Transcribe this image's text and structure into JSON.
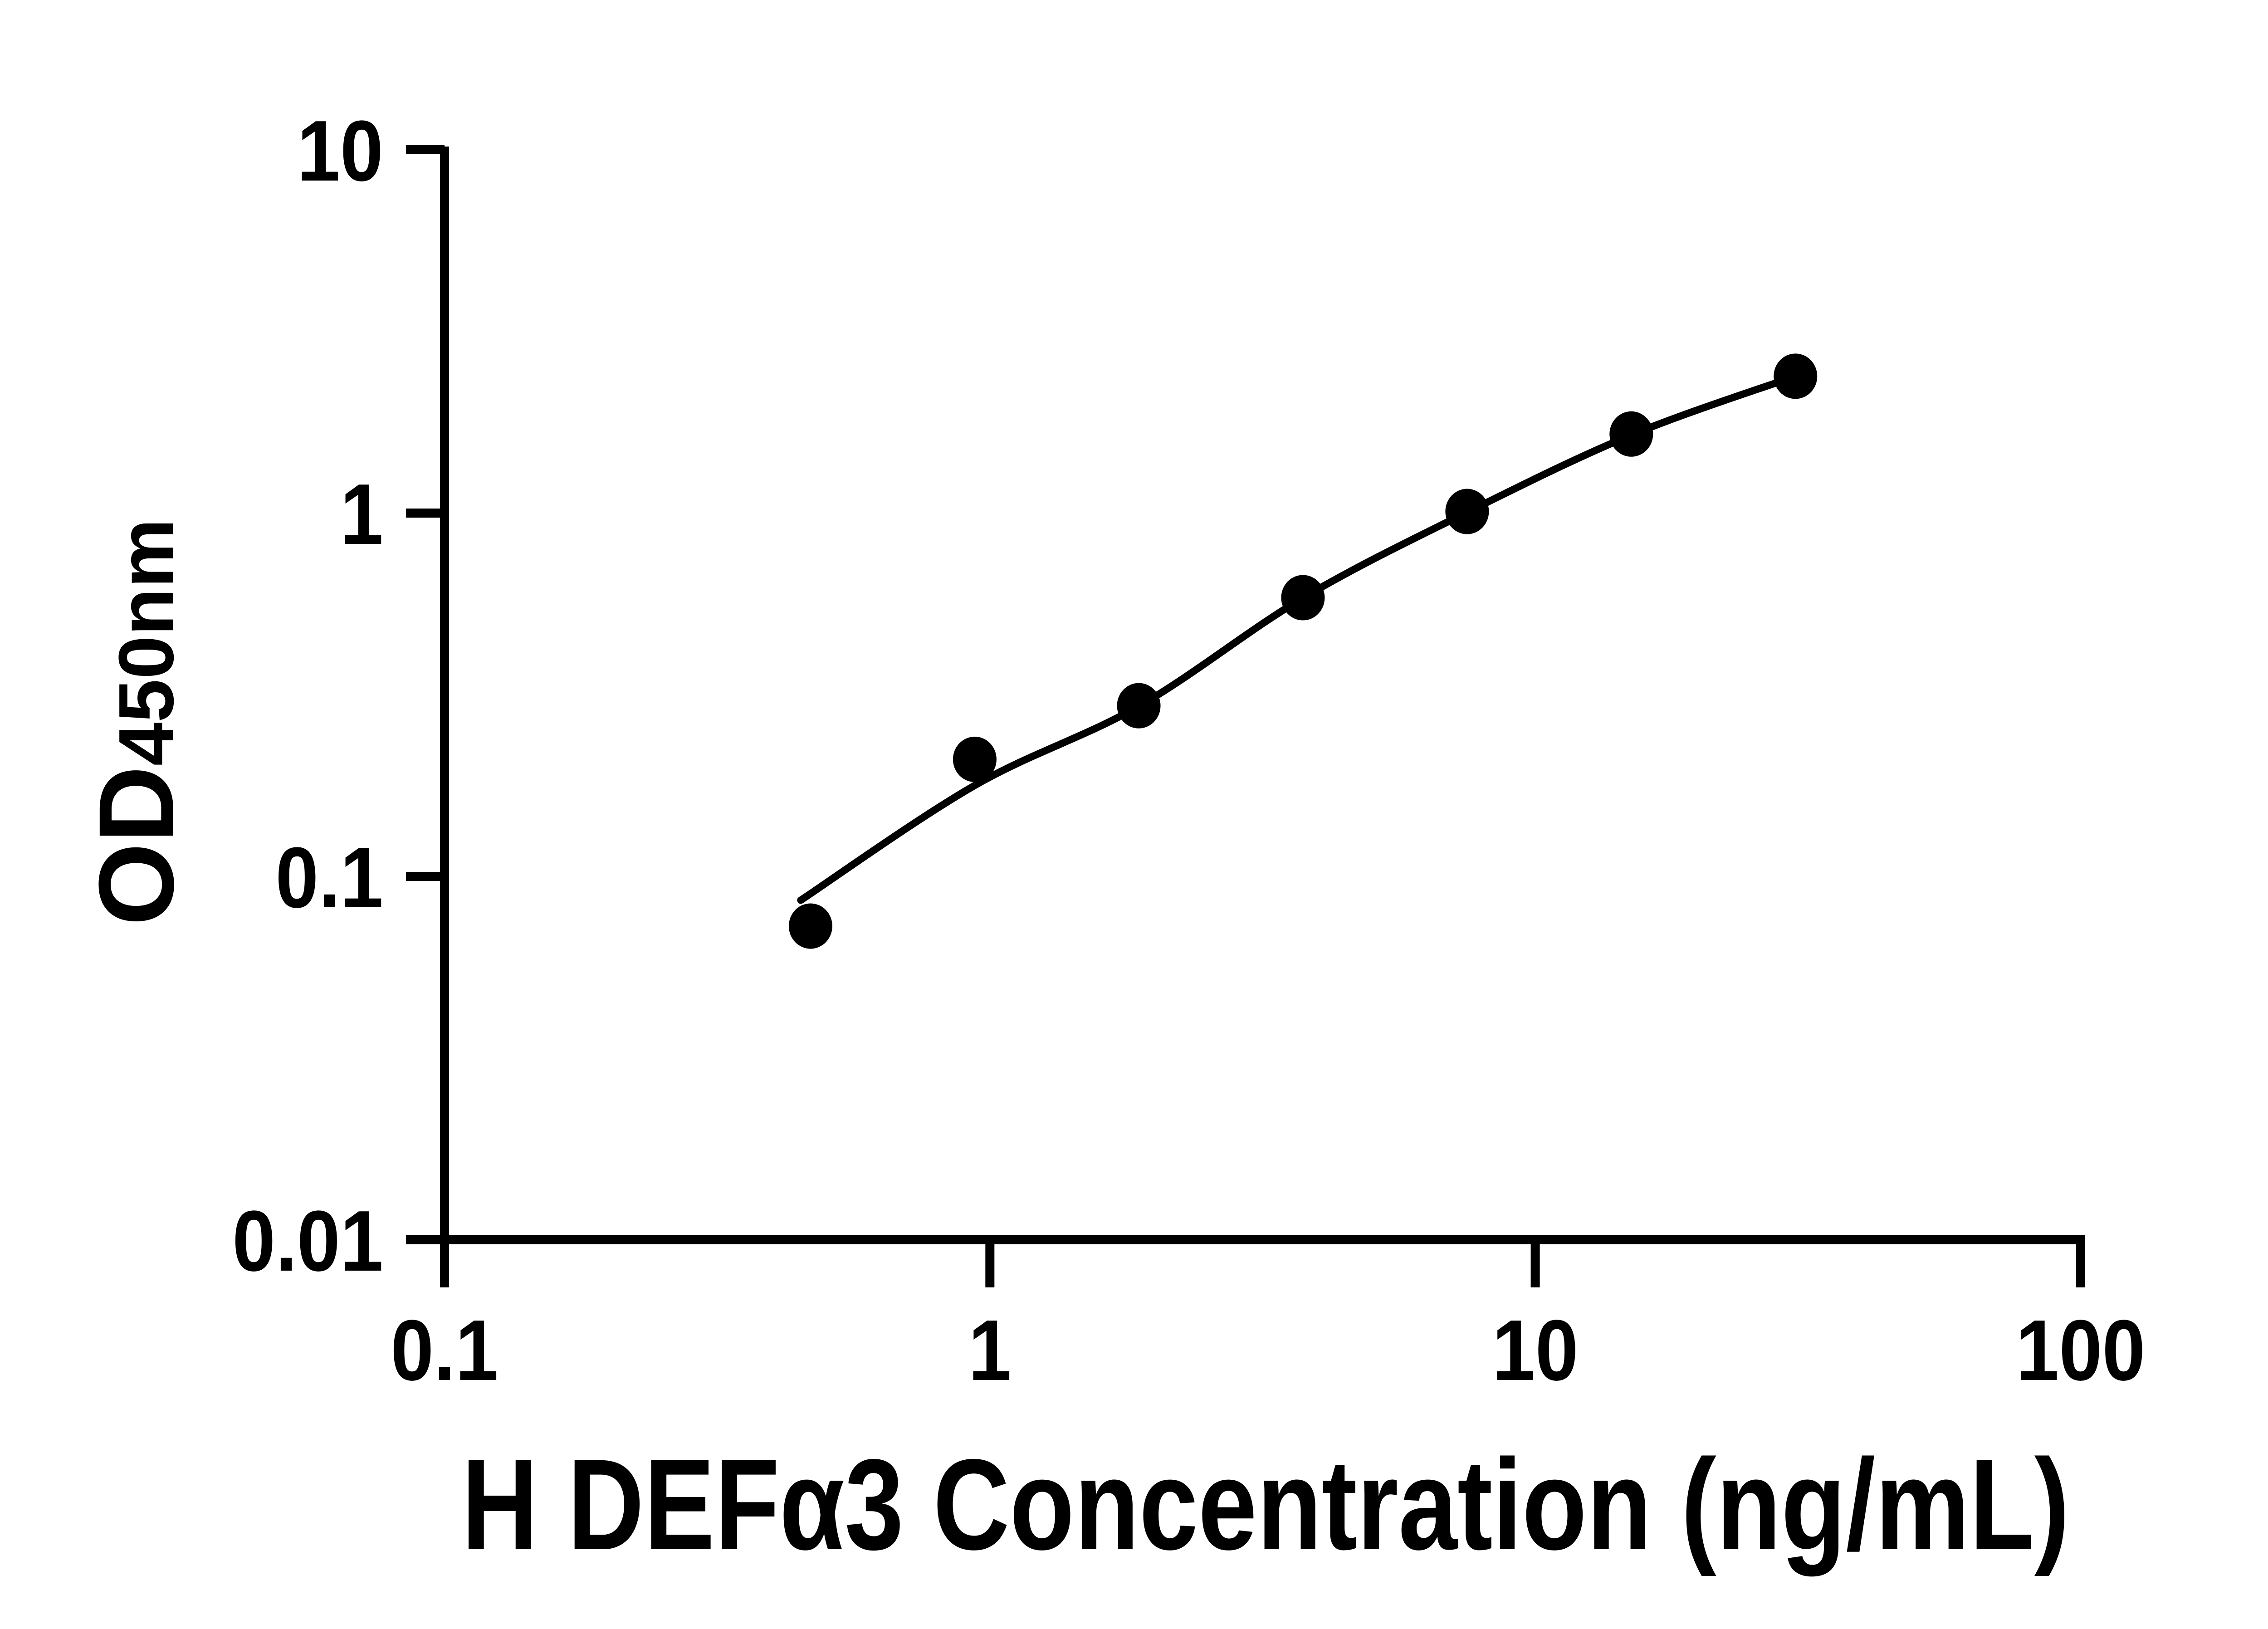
{
  "figure": {
    "background_color": "#ffffff",
    "ink_color": "#000000"
  },
  "chart_data": {
    "type": "scatter",
    "title": "",
    "xlabel": "H DEFα3 Concentration (ng/mL)",
    "ylabel_main": "OD",
    "ylabel_sub": "450nm",
    "x_scale": "log10",
    "y_scale": "log10",
    "xlim": [
      0.1,
      100
    ],
    "ylim": [
      0.01,
      10
    ],
    "grid": false,
    "legend": null,
    "x_ticks": [
      {
        "value": 0.1,
        "label": "0.1"
      },
      {
        "value": 1,
        "label": "1"
      },
      {
        "value": 10,
        "label": "10"
      },
      {
        "value": 100,
        "label": "100"
      }
    ],
    "y_ticks": [
      {
        "value": 10,
        "label": "10"
      },
      {
        "value": 1,
        "label": "1"
      },
      {
        "value": 0.1,
        "label": "0.1"
      },
      {
        "value": 0.01,
        "label": "0.01"
      }
    ],
    "series": [
      {
        "name": "standard-points",
        "marker": "filled-circle",
        "color": "#000000",
        "points": [
          {
            "x": 0.469,
            "y": 0.073
          },
          {
            "x": 0.938,
            "y": 0.21
          },
          {
            "x": 1.875,
            "y": 0.295
          },
          {
            "x": 3.75,
            "y": 0.585
          },
          {
            "x": 7.5,
            "y": 1.01
          },
          {
            "x": 15,
            "y": 1.65
          },
          {
            "x": 30,
            "y": 2.38
          }
        ]
      }
    ],
    "fit_curve": {
      "name": "standard-curve-fit",
      "color": "#000000",
      "points": [
        {
          "x": 0.45,
          "y": 0.086
        },
        {
          "x": 0.938,
          "y": 0.178
        },
        {
          "x": 1.875,
          "y": 0.294
        },
        {
          "x": 3.75,
          "y": 0.584
        },
        {
          "x": 7.5,
          "y": 1.005
        },
        {
          "x": 15,
          "y": 1.64
        },
        {
          "x": 30,
          "y": 2.38
        }
      ]
    }
  }
}
